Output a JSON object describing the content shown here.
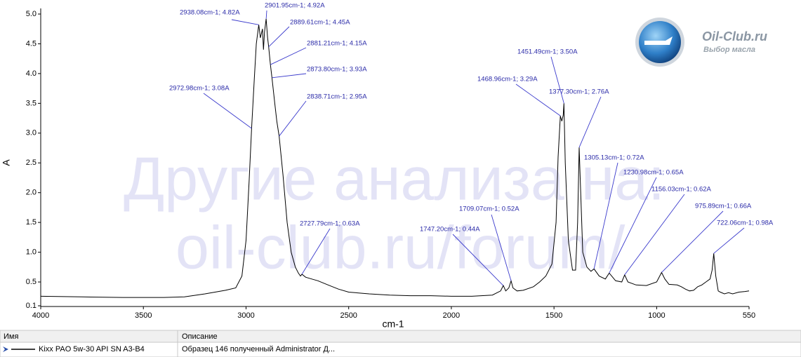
{
  "chart_data": {
    "type": "line",
    "x_label": "cm-1",
    "y_label": "A",
    "xlim": [
      4000,
      550
    ],
    "ylim": [
      0.1,
      5.0
    ],
    "xticks": [
      4000,
      3500,
      3000,
      2500,
      2000,
      1500,
      1000,
      550
    ],
    "yticks": [
      0.1,
      0.5,
      {
        "value": 1,
        "label": "1.0"
      },
      1.5,
      {
        "value": 2,
        "label": "2.0"
      },
      2.5,
      {
        "value": 3,
        "label": "3.0"
      },
      3.5,
      {
        "value": 4,
        "label": "4.0"
      },
      4.5,
      {
        "value": 5,
        "label": "5.0"
      }
    ],
    "grid": false,
    "x": [
      4000,
      3800,
      3600,
      3400,
      3300,
      3200,
      3100,
      3050,
      3020,
      3000,
      2985,
      2972.98,
      2960,
      2950,
      2938.08,
      2930,
      2920,
      2915,
      2910,
      2901.95,
      2895,
      2889.61,
      2881.21,
      2873.8,
      2860,
      2850,
      2838.71,
      2820,
      2800,
      2780,
      2760,
      2745,
      2735,
      2727.79,
      2710,
      2680,
      2650,
      2600,
      2550,
      2500,
      2400,
      2300,
      2200,
      2100,
      2000,
      1900,
      1800,
      1760,
      1747.2,
      1735,
      1720,
      1709.07,
      1700,
      1680,
      1650,
      1600,
      1570,
      1540,
      1510,
      1490,
      1480,
      1468.96,
      1462,
      1455,
      1451.49,
      1445,
      1430,
      1410,
      1395,
      1385,
      1377.3,
      1370,
      1360,
      1340,
      1320,
      1305.13,
      1280,
      1250,
      1230.98,
      1200,
      1170,
      1156.03,
      1140,
      1100,
      1050,
      1000,
      975.89,
      960,
      940,
      900,
      880,
      860,
      840,
      820,
      800,
      780,
      760,
      740,
      730,
      722.06,
      712,
      700,
      690,
      670,
      650,
      630,
      600,
      570,
      550
    ],
    "series": [
      {
        "name": "Kixx PAO 5w-30 API SN A3-B4",
        "color": "#000000",
        "values": [
          0.26,
          0.25,
          0.24,
          0.24,
          0.25,
          0.3,
          0.36,
          0.4,
          0.6,
          1.2,
          2.2,
          3.08,
          3.9,
          4.5,
          4.82,
          4.6,
          4.75,
          4.4,
          4.7,
          4.92,
          4.6,
          4.45,
          4.15,
          3.93,
          3.5,
          3.2,
          2.95,
          2.3,
          1.5,
          1.0,
          0.75,
          0.65,
          0.6,
          0.63,
          0.58,
          0.55,
          0.52,
          0.45,
          0.38,
          0.33,
          0.3,
          0.28,
          0.27,
          0.27,
          0.26,
          0.26,
          0.28,
          0.35,
          0.44,
          0.35,
          0.4,
          0.52,
          0.4,
          0.35,
          0.36,
          0.42,
          0.5,
          0.6,
          0.8,
          1.5,
          2.6,
          3.29,
          3.2,
          3.3,
          3.5,
          2.5,
          1.2,
          0.7,
          0.7,
          1.5,
          2.76,
          2.0,
          1.0,
          0.75,
          0.68,
          0.72,
          0.6,
          0.55,
          0.65,
          0.52,
          0.5,
          0.62,
          0.5,
          0.45,
          0.44,
          0.5,
          0.66,
          0.55,
          0.46,
          0.45,
          0.42,
          0.38,
          0.35,
          0.36,
          0.42,
          0.45,
          0.5,
          0.55,
          0.7,
          0.98,
          0.6,
          0.35,
          0.33,
          0.3,
          0.32,
          0.3,
          0.33,
          0.34,
          0.35
        ]
      }
    ],
    "annotations": [
      {
        "x": 2938.08,
        "y": 4.82,
        "text": "2938.08cm-1; 4.82A"
      },
      {
        "x": 2901.95,
        "y": 4.92,
        "text": "2901.95cm-1; 4.92A"
      },
      {
        "x": 2889.61,
        "y": 4.45,
        "text": "2889.61cm-1; 4.45A"
      },
      {
        "x": 2881.21,
        "y": 4.15,
        "text": "2881.21cm-1; 4.15A"
      },
      {
        "x": 2873.8,
        "y": 3.93,
        "text": "2873.80cm-1; 3.93A"
      },
      {
        "x": 2972.98,
        "y": 3.08,
        "text": "2972.98cm-1; 3.08A"
      },
      {
        "x": 2838.71,
        "y": 2.95,
        "text": "2838.71cm-1; 2.95A"
      },
      {
        "x": 2727.79,
        "y": 0.63,
        "text": "2727.79cm-1; 0.63A"
      },
      {
        "x": 1451.49,
        "y": 3.5,
        "text": "1451.49cm-1; 3.50A"
      },
      {
        "x": 1468.96,
        "y": 3.29,
        "text": "1468.96cm-1; 3.29A"
      },
      {
        "x": 1377.3,
        "y": 2.76,
        "text": "1377.30cm-1; 2.76A"
      },
      {
        "x": 1305.13,
        "y": 0.72,
        "text": "1305.13cm-1; 0.72A"
      },
      {
        "x": 1230.98,
        "y": 0.65,
        "text": "1230.98cm-1; 0.65A"
      },
      {
        "x": 1156.03,
        "y": 0.62,
        "text": "1156.03cm-1; 0.62A"
      },
      {
        "x": 975.89,
        "y": 0.66,
        "text": "975.89cm-1; 0.66A"
      },
      {
        "x": 722.06,
        "y": 0.98,
        "text": "722.06cm-1; 0.98A"
      },
      {
        "x": 1709.07,
        "y": 0.52,
        "text": "1709.07cm-1; 0.52A"
      },
      {
        "x": 1747.2,
        "y": 0.44,
        "text": "1747.20cm-1; 0.44A"
      }
    ]
  },
  "watermark": [
    "Другие анализа на:",
    "oil-club.ru/forum/"
  ],
  "logo": {
    "title": "Oil-Club.ru",
    "subtitle": "Выбор масла"
  },
  "table": {
    "headers": [
      "Имя",
      "Описание"
    ],
    "description": "Образец 146 полученный Administrator Д..."
  }
}
